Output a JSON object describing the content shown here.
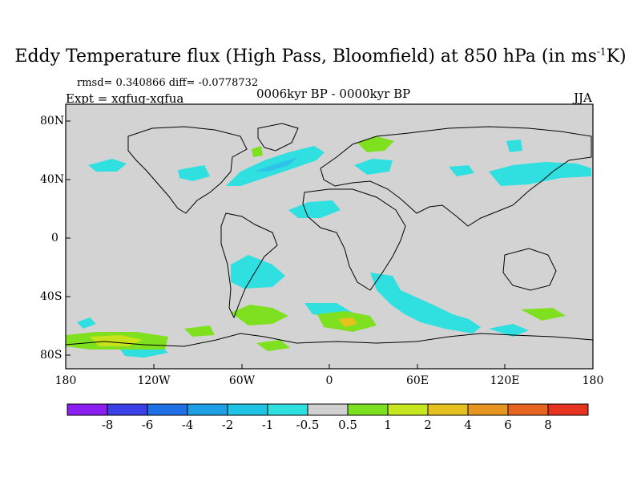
{
  "title": {
    "main": "Eddy Temperature flux (High Pass, Bloomfield) at 850 hPa (in ms",
    "superscript": "-1",
    "suffix": "K)"
  },
  "stats": "rmsd= 0.340866 diff= -0.0778732",
  "experiment": "Expt = xqfug-xqfua",
  "period": "0006kyr BP - 0000kyr BP",
  "season": "JJA",
  "axes": {
    "y_ticks": [
      "80N",
      "40N",
      "0",
      "40S",
      "80S"
    ],
    "x_ticks": [
      "180",
      "120W",
      "60W",
      "0",
      "60E",
      "120E",
      "180"
    ]
  },
  "colorbar": {
    "labels": [
      "-8",
      "-6",
      "-4",
      "-2",
      "-1",
      "-0.5",
      "0.5",
      "1",
      "2",
      "4",
      "6",
      "8"
    ],
    "colors": [
      "#8b1ff2",
      "#3b3fe6",
      "#1f6fe6",
      "#1f9fe6",
      "#1fc3e6",
      "#2fe0e0",
      "#d0d0d0",
      "#7be01f",
      "#c6e61f",
      "#e6c01f",
      "#e6961f",
      "#e6661f",
      "#e6331f"
    ]
  },
  "map": {
    "background": "#d3d3d3",
    "negative_color": "#30dfe0",
    "negative_strong_color": "#2ec3e8",
    "positive_color": "#7fe020",
    "positive_strong_color": "#c8e31a",
    "peak_color": "#e7c21f"
  }
}
